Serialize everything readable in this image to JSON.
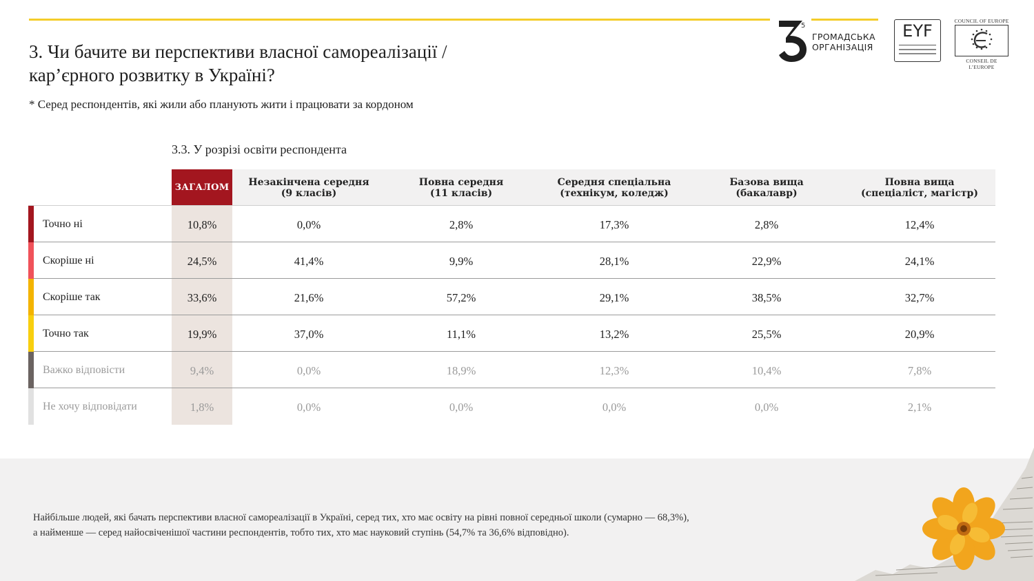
{
  "header": {
    "title_line1": "3. Чи бачите ви перспективи власної самореалізації /",
    "title_line2": "кар’єрного розвитку в Україні?",
    "subtitle": "* Серед респондентів, які жили або планують жити і працювати за кордоном",
    "section_title": "3.3. У розрізі освіти респондента"
  },
  "logos": {
    "org_superscript": "5",
    "org_line1": "ГРОМАДСЬКА",
    "org_line2": "ОРГАНІЗАЦІЯ",
    "eyf_text": "EYF",
    "coe_top": "COUNCIL OF EUROPE",
    "coe_bottom": "CONSEIL DE L’EUROPE"
  },
  "colors": {
    "accent_yellow": "#f4cd2a",
    "total_header": "#a3161f",
    "total_column": "#ece4df",
    "header_bg": "#f2f1f1"
  },
  "chart_data": {
    "type": "table",
    "columns": [
      "ЗАГАЛОМ",
      "Незакінчена середня (9 класів)",
      "Повна середня (11 класів)",
      "Середня спеціальна (технікум, коледж)",
      "Базова вища (бакалавр)",
      "Повна вища (спеціаліст, магістр)"
    ],
    "column_lines": [
      [
        "ЗАГАЛОМ"
      ],
      [
        "Незакінчена середня",
        "(9 класів)"
      ],
      [
        "Повна середня",
        "(11 класів)"
      ],
      [
        "Середня спеціальна",
        "(технікум, коледж)"
      ],
      [
        "Базова вища",
        "(бакалавр)"
      ],
      [
        "Повна вища",
        "(спеціаліст, магістр)"
      ]
    ],
    "rows": [
      {
        "label": "Точно ні",
        "color": "#a3161f",
        "muted": false,
        "values": [
          "10,8%",
          "0,0%",
          "2,8%",
          "17,3%",
          "2,8%",
          "12,4%"
        ]
      },
      {
        "label": "Скоріше ні",
        "color": "#f0525a",
        "muted": false,
        "values": [
          "24,5%",
          "41,4%",
          "9,9%",
          "28,1%",
          "22,9%",
          "24,1%"
        ]
      },
      {
        "label": "Скоріше так",
        "color": "#f3b400",
        "muted": false,
        "values": [
          "33,6%",
          "21,6%",
          "57,2%",
          "29,1%",
          "38,5%",
          "32,7%"
        ]
      },
      {
        "label": "Точно так",
        "color": "#f8cf0f",
        "muted": false,
        "values": [
          "19,9%",
          "37,0%",
          "11,1%",
          "13,2%",
          "25,5%",
          "20,9%"
        ]
      },
      {
        "label": "Важко відповісти",
        "color": "#6b6361",
        "muted": true,
        "values": [
          "9,4%",
          "0,0%",
          "18,9%",
          "12,3%",
          "10,4%",
          "7,8%"
        ]
      },
      {
        "label": "Не хочу відповідати",
        "color": "#e1e1e1",
        "muted": true,
        "values": [
          "1,8%",
          "0,0%",
          "0,0%",
          "0,0%",
          "0,0%",
          "2,1%"
        ]
      }
    ]
  },
  "footer": {
    "note_line1": "Найбільше людей, які бачать перспективи власної самореалізації в Україні, серед тих, хто має освіту на рівні повної середньої школи (сумарно — 68,3%),",
    "note_line2": "а найменше — серед найосвіченішої частини респондентів, тобто тих, хто має науковий ступінь (54,7% та 36,6% відповідно)."
  }
}
